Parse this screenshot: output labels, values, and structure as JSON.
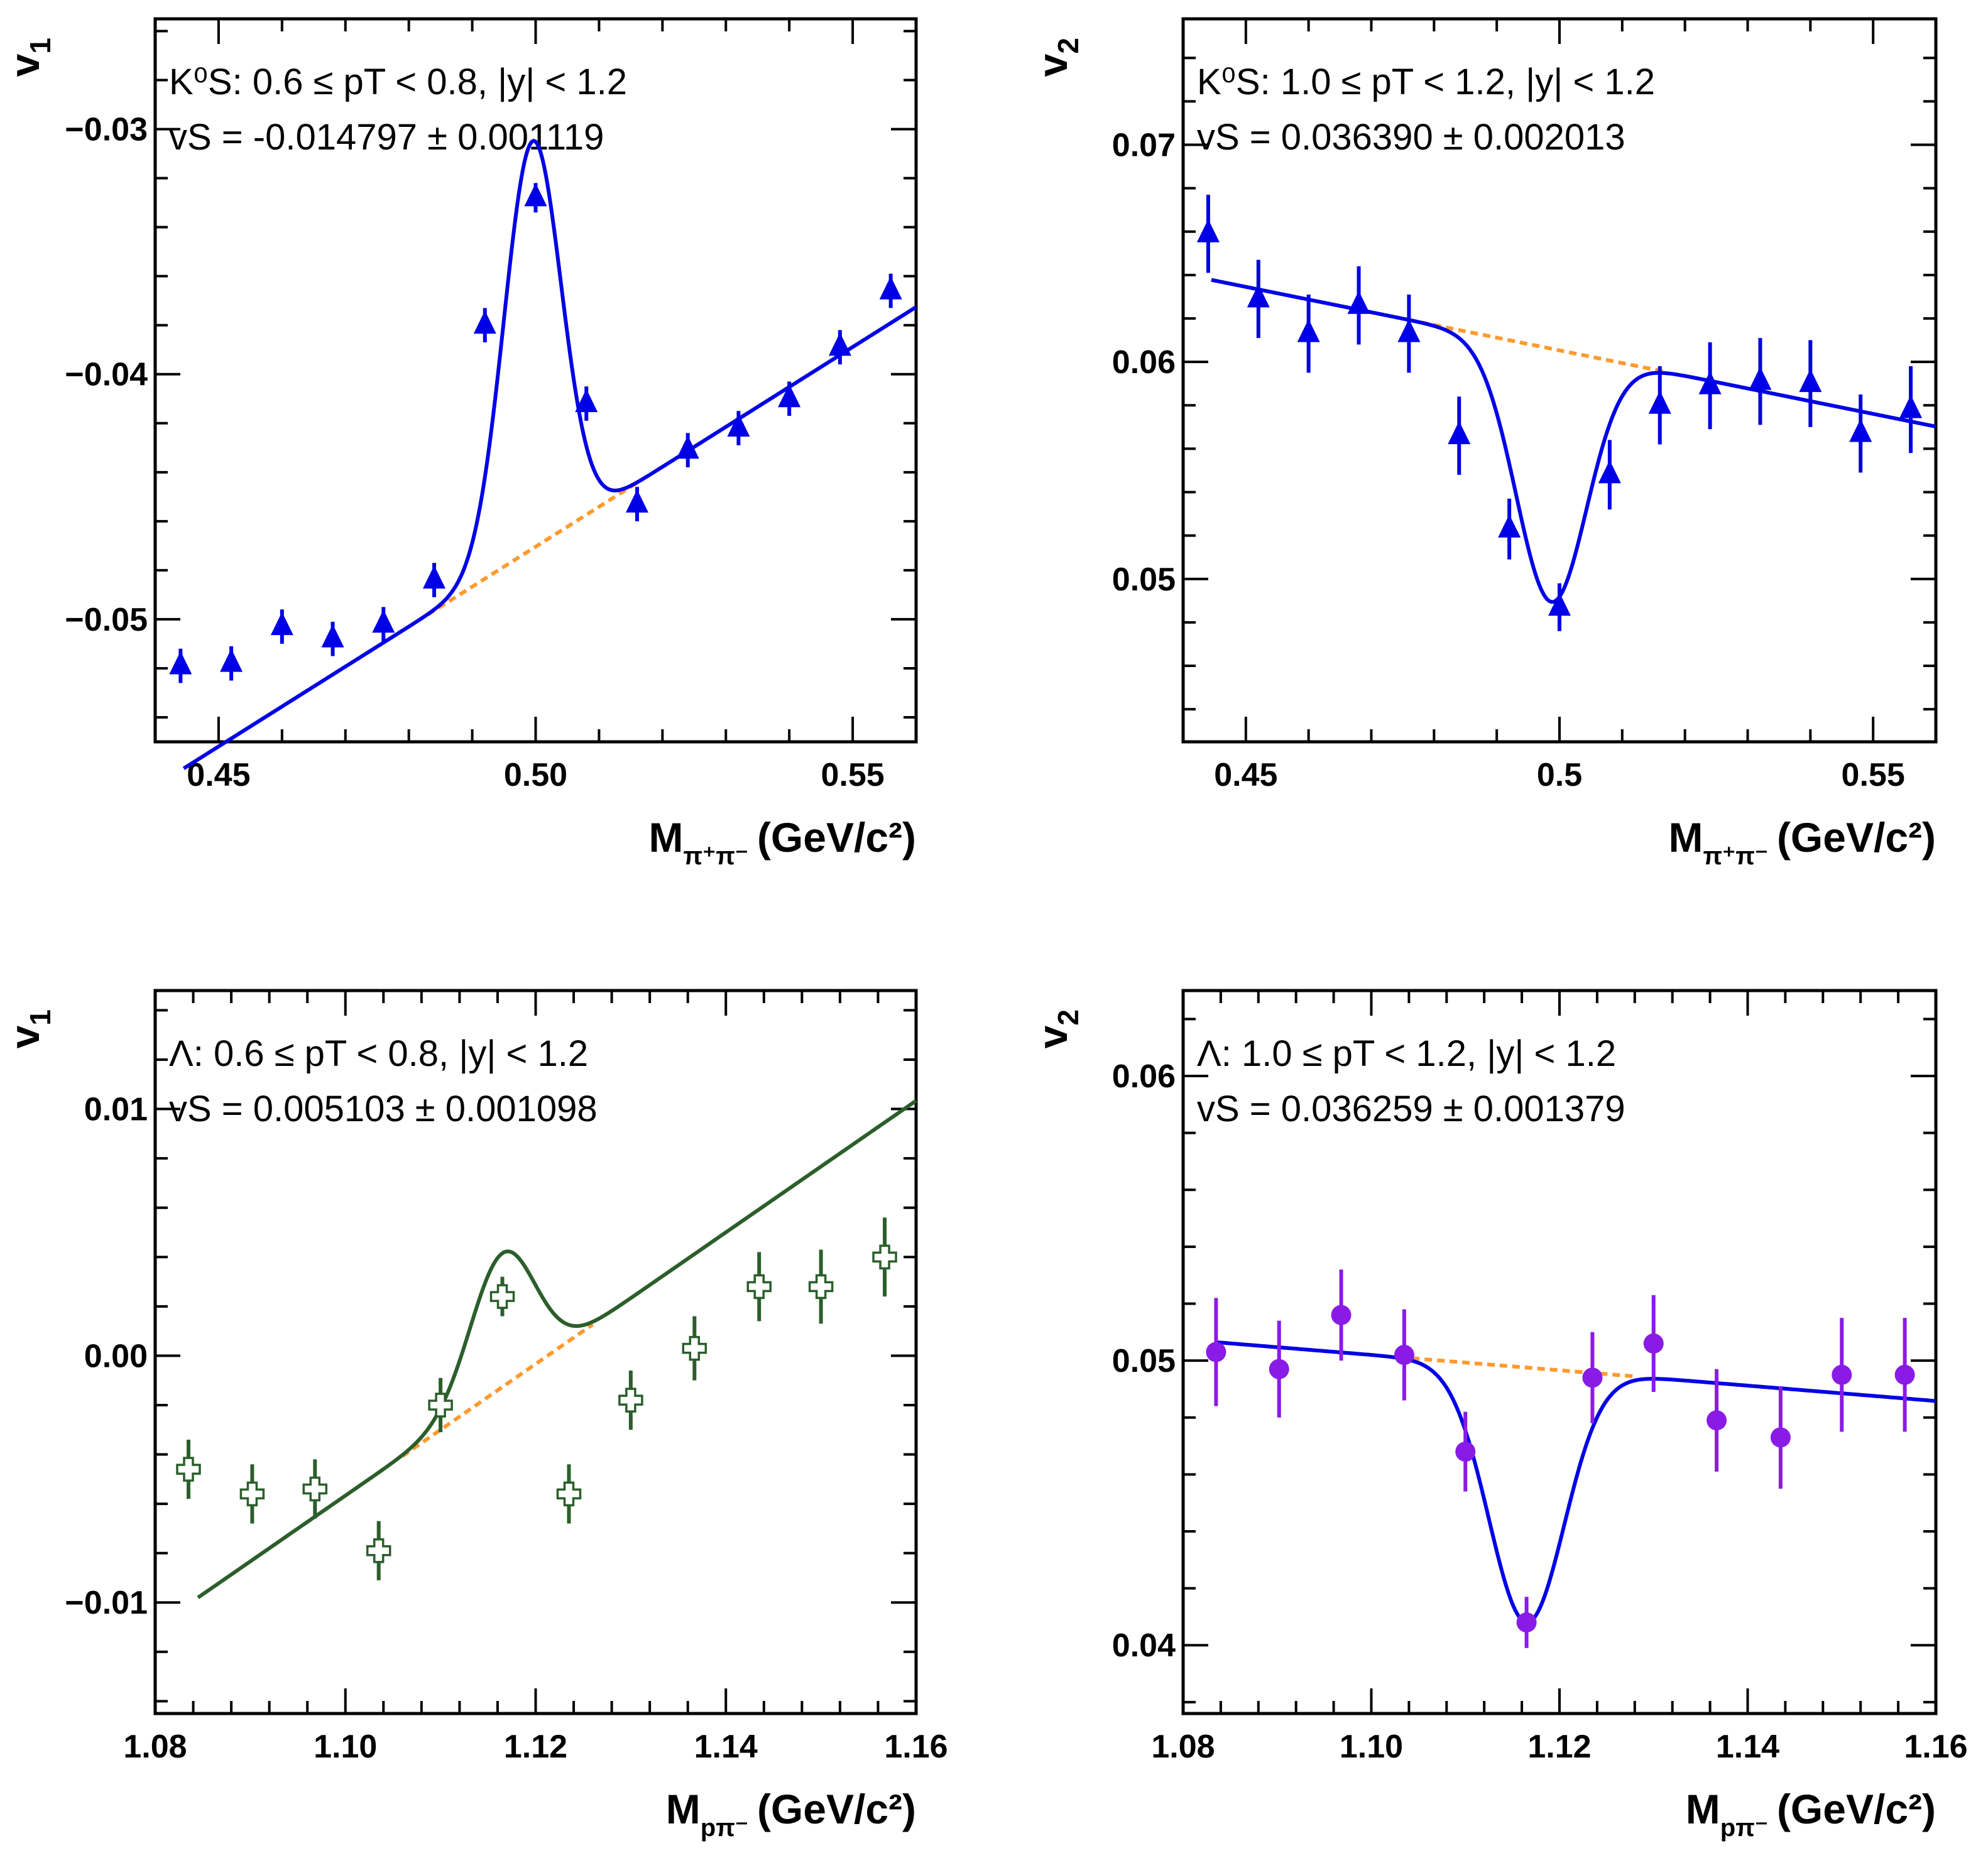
{
  "chart_data": [
    {
      "type": "scatter",
      "panel": "top-left",
      "ylabel_main": "v",
      "ylabel_sub": "1",
      "xlabel_main": "M",
      "xlabel_sub": "π⁺π⁻",
      "xlabel_units": "(GeV/c²)",
      "annotation_line1": "K⁰S: 0.6 ≤ pT < 0.8, |y| < 1.2",
      "annotation_line2": "vS = -0.014797 ± 0.001119",
      "xlim": [
        0.44,
        0.56
      ],
      "ylim": [
        -0.055,
        -0.0255
      ],
      "x_ticks": [
        0.45,
        0.5,
        0.55
      ],
      "x_tick_labels": [
        "0.45",
        "0.50",
        "0.55"
      ],
      "y_ticks": [
        -0.05,
        -0.04,
        -0.03
      ],
      "y_tick_labels": [
        "−0.05",
        "−0.04",
        "−0.03"
      ],
      "marker": "triangle",
      "marker_color": "#0000e6",
      "fit_color": "#0000e6",
      "bkg_color": "#ff9a2e",
      "fit": {
        "a": -0.0503,
        "b": 0.163,
        "x0": 0.48,
        "amp": 0.01663,
        "mu": 0.4995,
        "sigma": 0.0045,
        "shape": "cubic",
        "c3": 0,
        "x_start": 0.4445,
        "x_end": 0.56
      },
      "bkg_range": [
        0.483,
        0.516
      ],
      "points": {
        "x": [
          0.444,
          0.452,
          0.46,
          0.468,
          0.476,
          0.484,
          0.492,
          0.5,
          0.508,
          0.516,
          0.524,
          0.532,
          0.54,
          0.548,
          0.556
        ],
        "y": [
          -0.0519,
          -0.0518,
          -0.0503,
          -0.0508,
          -0.0502,
          -0.0484,
          -0.038,
          -0.0328,
          -0.0412,
          -0.0453,
          -0.0431,
          -0.0422,
          -0.041,
          -0.0389,
          -0.0366
        ],
        "err": [
          0.0007,
          0.0007,
          0.0007,
          0.0007,
          0.0007,
          0.0007,
          0.0007,
          0.0006,
          0.0007,
          0.0007,
          0.0007,
          0.0007,
          0.0007,
          0.0007,
          0.0007
        ]
      }
    },
    {
      "type": "scatter",
      "panel": "top-right",
      "ylabel_main": "v",
      "ylabel_sub": "2",
      "xlabel_main": "M",
      "xlabel_sub": "π⁺π⁻",
      "xlabel_units": "(GeV/c²)",
      "annotation_line1": "K⁰S: 1.0 ≤ pT < 1.2, |y| < 1.2",
      "annotation_line2": "vS = 0.036390 ± 0.002013",
      "xlim": [
        0.44,
        0.56
      ],
      "ylim": [
        0.0425,
        0.0758
      ],
      "x_ticks": [
        0.45,
        0.5,
        0.55
      ],
      "x_tick_labels": [
        "0.45",
        "0.5",
        "0.55"
      ],
      "y_ticks": [
        0.05,
        0.06,
        0.07
      ],
      "y_tick_labels": [
        "0.05",
        "0.06",
        "0.07"
      ],
      "marker": "triangle",
      "marker_color": "#0000e6",
      "fit_color": "#0000e6",
      "bkg_color": "#ff9a2e",
      "fit": {
        "a": 0.0617,
        "b": -0.0585,
        "x0": 0.48,
        "amp": -0.01166,
        "mu": 0.4987,
        "sigma": 0.0056,
        "shape": "cubic",
        "c3": 0,
        "x_start": 0.4445,
        "x_end": 0.56
      },
      "bkg_range": [
        0.476,
        0.517
      ],
      "points": {
        "x": [
          0.444,
          0.452,
          0.46,
          0.468,
          0.476,
          0.484,
          0.492,
          0.5,
          0.508,
          0.516,
          0.524,
          0.532,
          0.54,
          0.548,
          0.556
        ],
        "y": [
          0.0659,
          0.0629,
          0.0613,
          0.0626,
          0.0613,
          0.0566,
          0.0523,
          0.0487,
          0.0548,
          0.058,
          0.0589,
          0.0591,
          0.059,
          0.0567,
          0.0578
        ],
        "err": [
          0.0018,
          0.0018,
          0.0018,
          0.0018,
          0.0018,
          0.0018,
          0.0014,
          0.0011,
          0.0016,
          0.0018,
          0.002,
          0.002,
          0.002,
          0.0018,
          0.002
        ]
      }
    },
    {
      "type": "scatter",
      "panel": "bottom-left",
      "ylabel_main": "v",
      "ylabel_sub": "1",
      "xlabel_main": "M",
      "xlabel_sub": "pπ⁻",
      "xlabel_units": "(GeV/c²)",
      "annotation_line1": "Λ: 0.6 ≤ pT < 0.8, |y| < 1.2",
      "annotation_line2": "vS = 0.005103 ± 0.001098",
      "xlim": [
        1.08,
        1.16
      ],
      "ylim": [
        -0.0145,
        0.0148
      ],
      "x_ticks": [
        1.08,
        1.1,
        1.12,
        1.14,
        1.16
      ],
      "x_tick_labels": [
        "1.08",
        "1.10",
        "1.12",
        "1.14",
        "1.16"
      ],
      "y_ticks": [
        -0.01,
        0.0,
        0.01
      ],
      "y_tick_labels": [
        "−0.01",
        "0.00",
        "0.01"
      ],
      "marker": "cross",
      "marker_color": "#2b5e2b",
      "fit_color": "#2b5e2b",
      "bkg_color": "#ff9a2e",
      "fit": {
        "a": -0.003,
        "b": 0.2667,
        "x0": 1.11,
        "amp": 0.00542,
        "mu": 1.1165,
        "sigma": 0.0034,
        "shape": "cubic",
        "c3": 0,
        "x_start": 1.0845,
        "x_end": 1.16
      },
      "bkg_range": [
        1.106,
        1.126
      ],
      "points": {
        "x": [
          1.0835,
          1.0902,
          1.0968,
          1.1035,
          1.11,
          1.1165,
          1.1235,
          1.13,
          1.1367,
          1.1435,
          1.15,
          1.1567
        ],
        "y": [
          -0.0046,
          -0.0056,
          -0.0054,
          -0.0079,
          -0.002,
          0.0024,
          -0.0056,
          -0.0018,
          0.0003,
          0.0028,
          0.0028,
          0.004
        ],
        "err": [
          0.0012,
          0.0012,
          0.0012,
          0.0012,
          0.0011,
          0.0008,
          0.0012,
          0.0012,
          0.0013,
          0.0014,
          0.0015,
          0.0016
        ]
      }
    },
    {
      "type": "scatter",
      "panel": "bottom-right",
      "ylabel_main": "v",
      "ylabel_sub": "2",
      "xlabel_main": "M",
      "xlabel_sub": "pπ⁻",
      "xlabel_units": "(GeV/c²)",
      "annotation_line1": "Λ: 1.0 ≤ pT < 1.2, |y| < 1.2",
      "annotation_line2": "vS = 0.036259 ± 0.001379",
      "xlim": [
        1.08,
        1.16
      ],
      "ylim": [
        0.0376,
        0.063
      ],
      "x_ticks": [
        1.08,
        1.1,
        1.12,
        1.14,
        1.16
      ],
      "x_tick_labels": [
        "1.08",
        "1.10",
        "1.12",
        "1.14",
        "1.16"
      ],
      "y_ticks": [
        0.04,
        0.05,
        0.06
      ],
      "y_tick_labels": [
        "0.04",
        "0.05",
        "0.06"
      ],
      "marker": "circle",
      "marker_color": "#8a1be6",
      "fit_color": "#0000e6",
      "bkg_color": "#ff9a2e",
      "fit": {
        "a": 0.0502,
        "b": -0.027,
        "x0": 1.1,
        "amp": -0.00895,
        "mu": 1.1165,
        "sigma": 0.004,
        "shape": "cubic",
        "c3": 0,
        "x_start": 1.0835,
        "x_end": 1.16
      },
      "bkg_range": [
        1.103,
        1.128
      ],
      "points": {
        "x": [
          1.0835,
          1.0902,
          1.0968,
          1.1035,
          1.11,
          1.1165,
          1.1235,
          1.13,
          1.1367,
          1.1435,
          1.15,
          1.1567
        ],
        "y": [
          0.0503,
          0.0497,
          0.0516,
          0.0502,
          0.0468,
          0.0408,
          0.0494,
          0.0506,
          0.0479,
          0.0473,
          0.0495,
          0.0495
        ],
        "err": [
          0.0019,
          0.0017,
          0.0016,
          0.0016,
          0.0014,
          0.0009,
          0.0016,
          0.0017,
          0.0018,
          0.0018,
          0.002,
          0.002
        ]
      }
    }
  ]
}
